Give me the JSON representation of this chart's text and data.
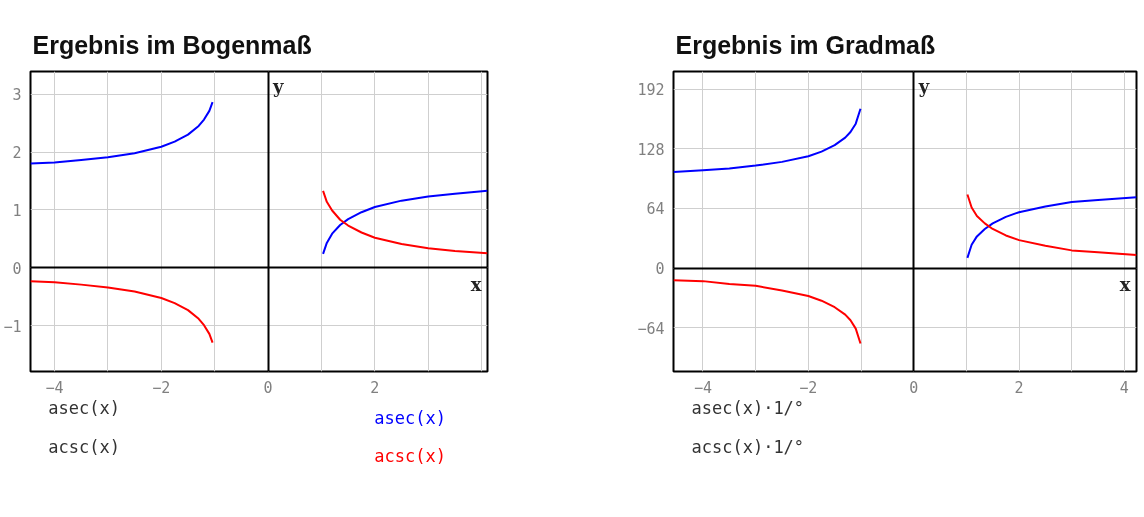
{
  "chart_data": [
    {
      "type": "line",
      "title": "Ergebnis im Bogenmaß",
      "xlabel": "x",
      "ylabel": "y",
      "x": [
        -4.45,
        -4,
        -3.5,
        -3,
        -2.5,
        -2,
        -1.75,
        -1.5,
        -1.3,
        -1.2,
        -1.1,
        -1.04,
        0,
        1.03,
        1.1,
        1.2,
        1.35,
        1.5,
        1.75,
        2,
        2.5,
        3,
        3.5,
        4.11
      ],
      "series": [
        {
          "name": "asec(x)",
          "color": "#0000ff",
          "values": [
            1.8,
            1.82,
            1.86,
            1.91,
            1.98,
            2.09,
            2.18,
            2.3,
            2.45,
            2.56,
            2.71,
            2.86,
            null,
            0.24,
            0.43,
            0.59,
            0.74,
            0.84,
            0.96,
            1.05,
            1.16,
            1.23,
            1.28,
            1.33
          ]
        },
        {
          "name": "acsc(x)",
          "color": "#ff0000",
          "values": [
            -0.23,
            -0.25,
            -0.29,
            -0.34,
            -0.41,
            -0.52,
            -0.61,
            -0.73,
            -0.88,
            -0.99,
            -1.14,
            -1.29,
            null,
            1.33,
            1.14,
            0.99,
            0.83,
            0.73,
            0.61,
            0.52,
            0.41,
            0.34,
            0.29,
            0.25
          ]
        }
      ],
      "xlim": [
        -4.45,
        4.11
      ],
      "ylim": [
        -1.79,
        3.39
      ],
      "xticks": [
        -4,
        {
          "value": -3,
          "label": null
        },
        -2,
        {
          "value": -1,
          "label": null
        },
        0,
        {
          "value": 1,
          "label": null
        },
        2,
        {
          "value": 3,
          "label": null
        },
        {
          "value": 4,
          "label": null
        }
      ],
      "yticks": [
        -1,
        0,
        1,
        2,
        3
      ],
      "grid": true,
      "annotations": [
        "asec(x)",
        "acsc(x)"
      ]
    },
    {
      "type": "line",
      "title": "Ergebnis im Gradmaß",
      "xlabel": "x",
      "ylabel": "y",
      "x": [
        -4.56,
        -4,
        -3.5,
        -3,
        -2.5,
        -2,
        -1.75,
        -1.5,
        -1.3,
        -1.2,
        -1.1,
        -1.01,
        0,
        1.02,
        1.1,
        1.2,
        1.35,
        1.5,
        1.75,
        2,
        2.5,
        3,
        3.5,
        4.23
      ],
      "series": [
        {
          "color": "#0000ff",
          "values": [
            103,
            105,
            107,
            110,
            114,
            120,
            125,
            132,
            140,
            146,
            155,
            171,
            null,
            11,
            25,
            34,
            42,
            48,
            55,
            60,
            66,
            71,
            73,
            76
          ]
        },
        {
          "color": "#ff0000",
          "values": [
            -13,
            -14,
            -17,
            -19,
            -24,
            -30,
            -35,
            -42,
            -50,
            -56,
            -65,
            -81,
            null,
            79,
            65,
            56,
            48,
            42,
            35,
            30,
            24,
            19,
            17,
            14
          ]
        }
      ],
      "xlim": [
        -4.56,
        4.23
      ],
      "ylim": [
        -111,
        211
      ],
      "xticks": [
        -4,
        {
          "value": -3,
          "label": null
        },
        -2,
        {
          "value": -1,
          "label": null
        },
        0,
        {
          "value": 1,
          "label": null
        },
        2,
        {
          "value": 3,
          "label": null
        },
        4
      ],
      "yticks": [
        -64,
        0,
        64,
        128,
        192
      ],
      "grid": true,
      "annotations": [
        "asec(x)·1/°",
        "acsc(x)·1/°"
      ]
    }
  ]
}
